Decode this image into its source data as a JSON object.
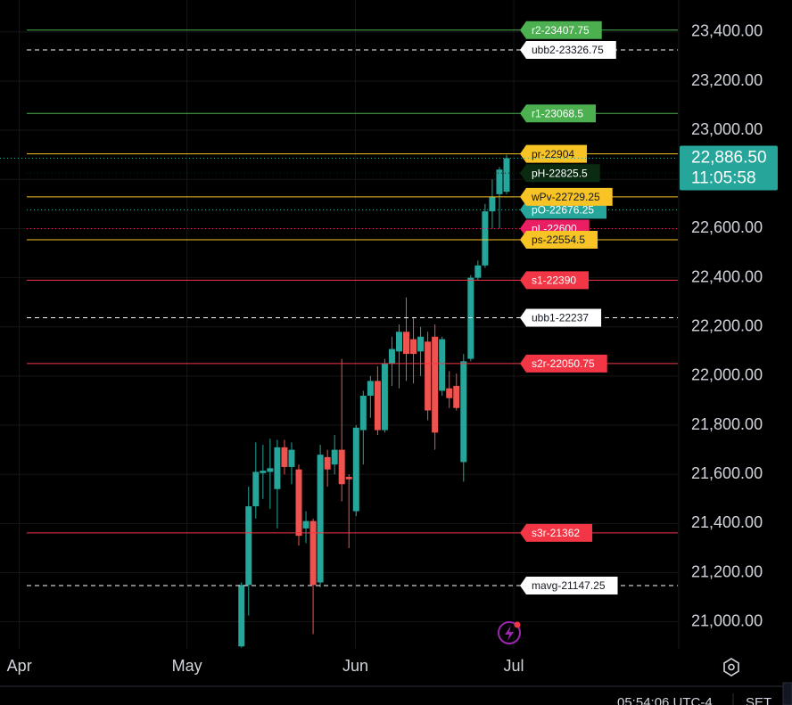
{
  "chart_data": {
    "type": "candlestick",
    "up_color": "#26a69a",
    "down_color": "#ef5350",
    "x": [
      31,
      32,
      33,
      34,
      35,
      36,
      37,
      38,
      39,
      40,
      41,
      42,
      43,
      44,
      45,
      46,
      47,
      48,
      49,
      50,
      51,
      52,
      53,
      54,
      55,
      56,
      57,
      58,
      59,
      60,
      61,
      62,
      63,
      64,
      65,
      66,
      67,
      68
    ],
    "open": [
      20900,
      21150,
      21470,
      21605,
      21610,
      21540,
      21710,
      21630,
      21620,
      21380,
      21410,
      21160,
      21670,
      21640,
      21700,
      21590,
      21450,
      21780,
      21920,
      21980,
      21780,
      22050,
      22100,
      22180,
      22150,
      22100,
      22140,
      22160,
      21940,
      21950,
      21960,
      21650,
      22070,
      22400,
      22450,
      22670,
      22740,
      22750
    ],
    "high": [
      21160,
      21550,
      21730,
      21720,
      21745,
      21740,
      21740,
      21730,
      21640,
      21450,
      21420,
      21720,
      21700,
      21760,
      22070,
      21600,
      21800,
      21940,
      22000,
      22040,
      22070,
      22160,
      22210,
      22320,
      22240,
      22200,
      22180,
      22210,
      22160,
      22020,
      22010,
      22090,
      22410,
      22470,
      22700,
      22800,
      22850,
      22900
    ],
    "low": [
      20895,
      21025,
      21420,
      21500,
      21460,
      21380,
      21600,
      21560,
      21310,
      21320,
      20950,
      21140,
      21550,
      21600,
      21490,
      21300,
      21430,
      21640,
      21830,
      21760,
      21770,
      21960,
      21950,
      21980,
      21970,
      22000,
      21820,
      21700,
      21920,
      21870,
      21860,
      21570,
      22060,
      22390,
      22440,
      22600,
      22600,
      22740
    ],
    "close": [
      21150,
      21470,
      21610,
      21615,
      21625,
      21710,
      21630,
      21700,
      21350,
      21410,
      21150,
      21680,
      21620,
      21700,
      21560,
      21580,
      21790,
      21920,
      21980,
      21780,
      22050,
      22110,
      22180,
      22090,
      22090,
      22160,
      21860,
      21770,
      22150,
      21910,
      21870,
      22060,
      22400,
      22450,
      22670,
      22730,
      22840,
      22886.5
    ],
    "xlim": [
      -2.7,
      91.9
    ],
    "xticks": [
      {
        "value": 0,
        "label": "Apr"
      },
      {
        "value": 23.4,
        "label": "May"
      },
      {
        "value": 46.9,
        "label": "Jun"
      },
      {
        "value": 69,
        "label": "Jul"
      }
    ],
    "ylim": [
      20890,
      23530
    ],
    "yticks": [
      {
        "value": 21000,
        "label": "21,000.00"
      },
      {
        "value": 21200,
        "label": "21,200.00"
      },
      {
        "value": 21400,
        "label": "21,400.00"
      },
      {
        "value": 21600,
        "label": "21,600.00"
      },
      {
        "value": 21800,
        "label": "21,800.00"
      },
      {
        "value": 22000,
        "label": "22,000.00"
      },
      {
        "value": 22200,
        "label": "22,200.00"
      },
      {
        "value": 22400,
        "label": "22,400.00"
      },
      {
        "value": 22600,
        "label": "22,600.00"
      },
      {
        "value": 22800,
        "label": "22,800.00"
      },
      {
        "value": 23000,
        "label": "23,000.00"
      },
      {
        "value": 23200,
        "label": "23,200.00"
      },
      {
        "value": 23400,
        "label": "23,400.00"
      }
    ],
    "grid": true,
    "levels": [
      {
        "label": "r2-23407.75",
        "value": 23407.75,
        "color": "#4caf50",
        "text_color": "#ffffff",
        "style": "solid"
      },
      {
        "label": "ubb2-23326.75",
        "value": 23326.75,
        "color": "#ffffff",
        "text_color": "#131722",
        "style": "dashed"
      },
      {
        "label": "r1-23068.5",
        "value": 23068.5,
        "color": "#4caf50",
        "text_color": "#ffffff",
        "style": "solid"
      },
      {
        "label": "pr-22904",
        "value": 22904,
        "color": "#f7c325",
        "text_color": "#131722",
        "style": "solid"
      },
      {
        "label": "pH-22825.5",
        "value": 22825.5,
        "color": "#0b2a12",
        "text_color": "#ffffff",
        "style": "dotted"
      },
      {
        "label": "pO-22676.25",
        "value": 22676.25,
        "color": "#26a69a",
        "text_color": "#ffffff",
        "style": "dotted"
      },
      {
        "label": "pL-22600",
        "value": 22600,
        "color": "#e91e63",
        "text_color": "#ffffff",
        "style": "dotted"
      },
      {
        "label": "wPv-22729.25",
        "value": 22729.25,
        "color": "#f7c325",
        "text_color": "#131722",
        "style": "solid"
      },
      {
        "label": "ps-22554.5",
        "value": 22554.5,
        "color": "#f7c325",
        "text_color": "#131722",
        "style": "solid"
      },
      {
        "label": "s1-22390",
        "value": 22390,
        "color": "#f23645",
        "text_color": "#ffffff",
        "style": "solid"
      },
      {
        "label": "ubb1-22237",
        "value": 22237,
        "color": "#ffffff",
        "text_color": "#131722",
        "style": "dashed"
      },
      {
        "label": "s2r-22050.75",
        "value": 22050.75,
        "color": "#f23645",
        "text_color": "#ffffff",
        "style": "solid"
      },
      {
        "label": "s3r-21362",
        "value": 21362,
        "color": "#f23645",
        "text_color": "#ffffff",
        "style": "solid"
      },
      {
        "label": "mavg-21147.25",
        "value": 21147.25,
        "color": "#ffffff",
        "text_color": "#131722",
        "style": "dashed"
      }
    ],
    "last_price": {
      "value": 22886.5,
      "label": "22,886.50"
    },
    "countdown": "11:05:58"
  },
  "status_bar": {
    "time": "05:54:06 UTC-4",
    "session": "SET"
  }
}
